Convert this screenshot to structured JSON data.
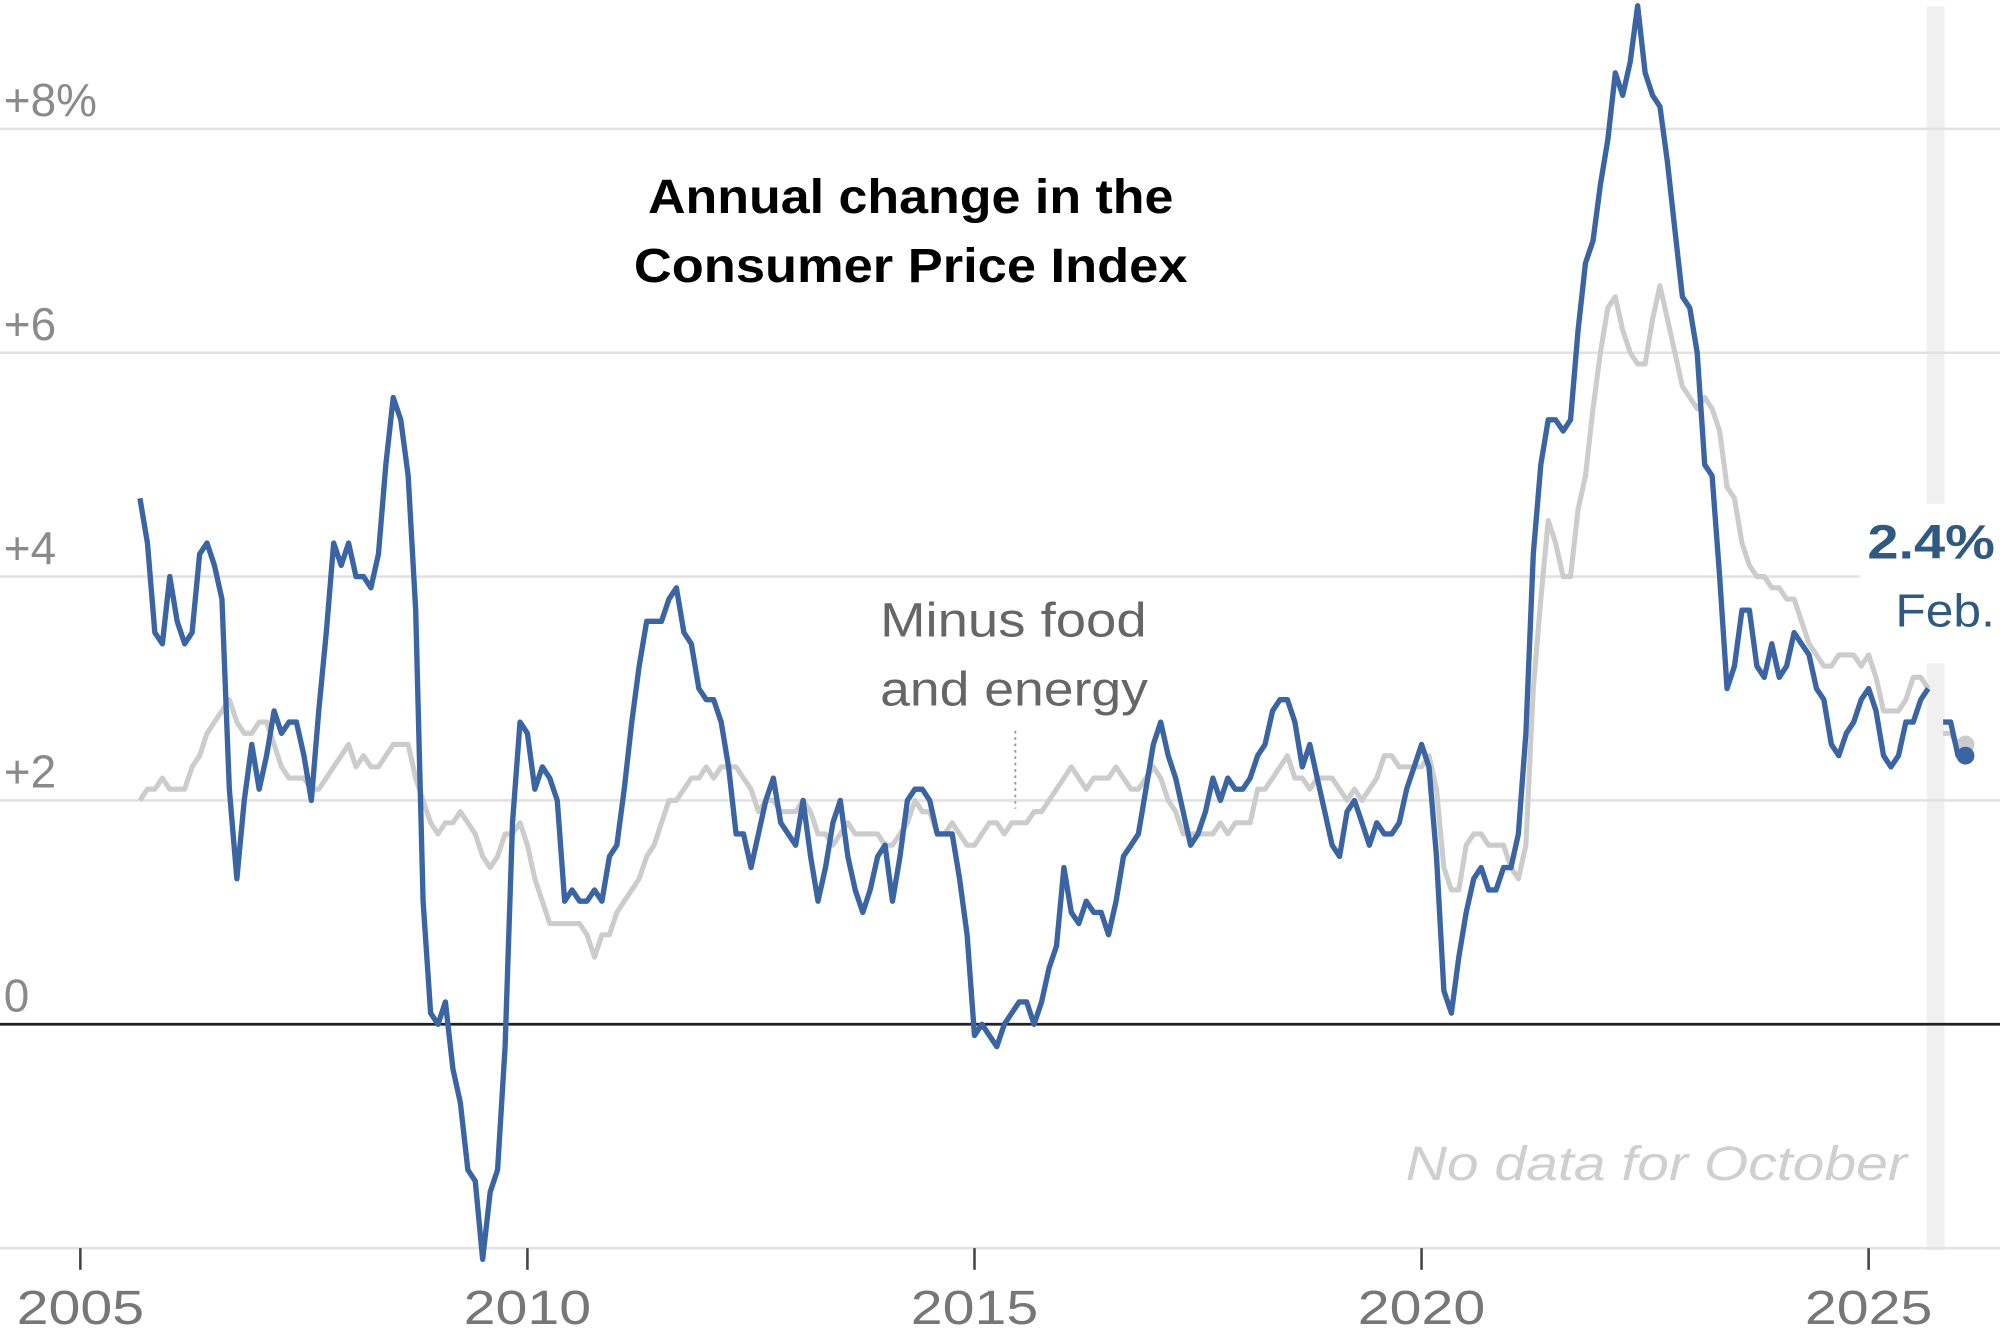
{
  "chart_data": {
    "type": "line",
    "title": "Annual change in the Consumer Price Index",
    "title_lines": [
      "Annual change in the",
      "Consumer Price Index"
    ],
    "xlabel": "",
    "ylabel": "",
    "xlim": [
      2005,
      2026.2
    ],
    "ylim": [
      -2.1,
      9.1
    ],
    "x_ticks": [
      "2005",
      "2010",
      "2015",
      "2020",
      "2025"
    ],
    "y_ticks": [
      {
        "value": 8,
        "label": "+8%"
      },
      {
        "value": 6,
        "label": "+6"
      },
      {
        "value": 4,
        "label": "+4"
      },
      {
        "value": 2,
        "label": "+2"
      },
      {
        "value": 0,
        "label": "0"
      },
      {
        "value": -2,
        "label": ""
      }
    ],
    "grid": true,
    "colors": {
      "headline": "#3b64a2",
      "core": "#cccccc",
      "label": "#30597f",
      "gap_band": "#f0f0f0"
    },
    "annotations": {
      "core_label": [
        "Minus food",
        "and energy"
      ],
      "gap_note": "No data for October",
      "end_value": "2.4%",
      "end_month": "Feb."
    },
    "series": [
      {
        "name": "",
        "role": "headline",
        "monthly_by_year": {
          "2005": [
            null,
            null,
            null,
            null,
            null,
            null,
            null,
            null,
            4.7,
            4.3,
            3.5,
            3.4
          ],
          "2006": [
            4.0,
            3.6,
            3.4,
            3.5,
            4.2,
            4.3,
            4.1,
            3.8,
            2.1,
            1.3,
            2.0,
            2.5
          ],
          "2007": [
            2.1,
            2.4,
            2.8,
            2.6,
            2.7,
            2.7,
            2.4,
            2.0,
            2.8,
            3.5,
            4.3,
            4.1
          ],
          "2008": [
            4.3,
            4.0,
            4.0,
            3.9,
            4.2,
            5.0,
            5.6,
            5.4,
            4.9,
            3.7,
            1.1,
            0.1
          ],
          "2009": [
            0.0,
            0.2,
            -0.4,
            -0.7,
            -1.3,
            -1.4,
            -2.1,
            -1.5,
            -1.3,
            -0.2,
            1.8,
            2.7
          ],
          "2010": [
            2.6,
            2.1,
            2.3,
            2.2,
            2.0,
            1.1,
            1.2,
            1.1,
            1.1,
            1.2,
            1.1,
            1.5
          ],
          "2011": [
            1.6,
            2.1,
            2.7,
            3.2,
            3.6,
            3.6,
            3.6,
            3.8,
            3.9,
            3.5,
            3.4,
            3.0
          ],
          "2012": [
            2.9,
            2.9,
            2.7,
            2.3,
            1.7,
            1.7,
            1.4,
            1.7,
            2.0,
            2.2,
            1.8,
            1.7
          ],
          "2013": [
            1.6,
            2.0,
            1.5,
            1.1,
            1.4,
            1.8,
            2.0,
            1.5,
            1.2,
            1.0,
            1.2,
            1.5
          ],
          "2014": [
            1.6,
            1.1,
            1.5,
            2.0,
            2.1,
            2.1,
            2.0,
            1.7,
            1.7,
            1.7,
            1.3,
            0.8
          ],
          "2015": [
            -0.1,
            0.0,
            -0.1,
            -0.2,
            0.0,
            0.1,
            0.2,
            0.2,
            0.0,
            0.2,
            0.5,
            0.7
          ],
          "2016": [
            1.4,
            1.0,
            0.9,
            1.1,
            1.0,
            1.0,
            0.8,
            1.1,
            1.5,
            1.6,
            1.7,
            2.1
          ],
          "2017": [
            2.5,
            2.7,
            2.4,
            2.2,
            1.9,
            1.6,
            1.7,
            1.9,
            2.2,
            2.0,
            2.2,
            2.1
          ],
          "2018": [
            2.1,
            2.2,
            2.4,
            2.5,
            2.8,
            2.9,
            2.9,
            2.7,
            2.3,
            2.5,
            2.2,
            1.9
          ],
          "2019": [
            1.6,
            1.5,
            1.9,
            2.0,
            1.8,
            1.6,
            1.8,
            1.7,
            1.7,
            1.8,
            2.1,
            2.3
          ],
          "2020": [
            2.5,
            2.3,
            1.5,
            0.3,
            0.1,
            0.6,
            1.0,
            1.3,
            1.4,
            1.2,
            1.2,
            1.4
          ],
          "2021": [
            1.4,
            1.7,
            2.6,
            4.2,
            5.0,
            5.4,
            5.4,
            5.3,
            5.4,
            6.2,
            6.8,
            7.0
          ],
          "2022": [
            7.5,
            7.9,
            8.5,
            8.3,
            8.6,
            9.1,
            8.5,
            8.3,
            8.2,
            7.7,
            7.1,
            6.5
          ],
          "2023": [
            6.4,
            6.0,
            5.0,
            4.9,
            4.0,
            3.0,
            3.2,
            3.7,
            3.7,
            3.2,
            3.1,
            3.4
          ],
          "2024": [
            3.1,
            3.2,
            3.5,
            3.4,
            3.3,
            3.0,
            2.9,
            2.5,
            2.4,
            2.6,
            2.7,
            2.9
          ],
          "2025": [
            3.0,
            2.8,
            2.4,
            2.3,
            2.4,
            2.7,
            2.7,
            2.9,
            3.0,
            null,
            2.7,
            2.7
          ],
          "2026": [
            2.4,
            2.4
          ]
        }
      },
      {
        "name": "Minus food and energy",
        "role": "core",
        "monthly_by_year": {
          "2005": [
            null,
            null,
            null,
            null,
            null,
            null,
            null,
            null,
            2.0,
            2.1,
            2.1,
            2.2
          ],
          "2006": [
            2.1,
            2.1,
            2.1,
            2.3,
            2.4,
            2.6,
            2.7,
            2.8,
            2.9,
            2.7,
            2.6,
            2.6
          ],
          "2007": [
            2.7,
            2.7,
            2.5,
            2.3,
            2.2,
            2.2,
            2.2,
            2.1,
            2.1,
            2.2,
            2.3,
            2.4
          ],
          "2008": [
            2.5,
            2.3,
            2.4,
            2.3,
            2.3,
            2.4,
            2.5,
            2.5,
            2.5,
            2.2,
            2.0,
            1.8
          ],
          "2009": [
            1.7,
            1.8,
            1.8,
            1.9,
            1.8,
            1.7,
            1.5,
            1.4,
            1.5,
            1.7,
            1.7,
            1.8
          ],
          "2010": [
            1.6,
            1.3,
            1.1,
            0.9,
            0.9,
            0.9,
            0.9,
            0.9,
            0.8,
            0.6,
            0.8,
            0.8
          ],
          "2011": [
            1.0,
            1.1,
            1.2,
            1.3,
            1.5,
            1.6,
            1.8,
            2.0,
            2.0,
            2.1,
            2.2,
            2.2
          ],
          "2012": [
            2.3,
            2.2,
            2.3,
            2.3,
            2.3,
            2.2,
            2.1,
            1.9,
            2.0,
            2.0,
            1.9,
            1.9
          ],
          "2013": [
            1.9,
            2.0,
            1.9,
            1.7,
            1.7,
            1.6,
            1.7,
            1.8,
            1.7,
            1.7,
            1.7,
            1.7
          ],
          "2014": [
            1.6,
            1.6,
            1.7,
            1.8,
            2.0,
            1.9,
            1.9,
            1.7,
            1.7,
            1.8,
            1.7,
            1.6
          ],
          "2015": [
            1.6,
            1.7,
            1.8,
            1.8,
            1.7,
            1.8,
            1.8,
            1.8,
            1.9,
            1.9,
            2.0,
            2.1
          ],
          "2016": [
            2.2,
            2.3,
            2.2,
            2.1,
            2.2,
            2.2,
            2.2,
            2.3,
            2.2,
            2.1,
            2.1,
            2.2
          ],
          "2017": [
            2.3,
            2.2,
            2.0,
            1.9,
            1.7,
            1.7,
            1.7,
            1.7,
            1.7,
            1.8,
            1.7,
            1.8
          ],
          "2018": [
            1.8,
            1.8,
            2.1,
            2.1,
            2.2,
            2.3,
            2.4,
            2.2,
            2.2,
            2.1,
            2.2,
            2.2
          ],
          "2019": [
            2.2,
            2.1,
            2.0,
            2.1,
            2.0,
            2.1,
            2.2,
            2.4,
            2.4,
            2.3,
            2.3,
            2.3
          ],
          "2020": [
            2.3,
            2.4,
            2.1,
            1.4,
            1.2,
            1.2,
            1.6,
            1.7,
            1.7,
            1.6,
            1.6,
            1.6
          ],
          "2021": [
            1.4,
            1.3,
            1.6,
            3.0,
            3.8,
            4.5,
            4.3,
            4.0,
            4.0,
            4.6,
            4.9,
            5.5
          ],
          "2022": [
            6.0,
            6.4,
            6.5,
            6.2,
            6.0,
            5.9,
            5.9,
            6.3,
            6.6,
            6.3,
            6.0,
            5.7
          ],
          "2023": [
            5.6,
            5.5,
            5.6,
            5.5,
            5.3,
            4.8,
            4.7,
            4.3,
            4.1,
            4.0,
            4.0,
            3.9
          ],
          "2024": [
            3.9,
            3.8,
            3.8,
            3.6,
            3.4,
            3.3,
            3.2,
            3.2,
            3.3,
            3.3,
            3.3,
            3.2
          ],
          "2025": [
            3.3,
            3.1,
            2.8,
            2.8,
            2.8,
            2.9,
            3.1,
            3.1,
            3.0,
            null,
            2.6,
            2.6
          ],
          "2026": [
            2.5,
            2.5
          ]
        }
      }
    ]
  }
}
